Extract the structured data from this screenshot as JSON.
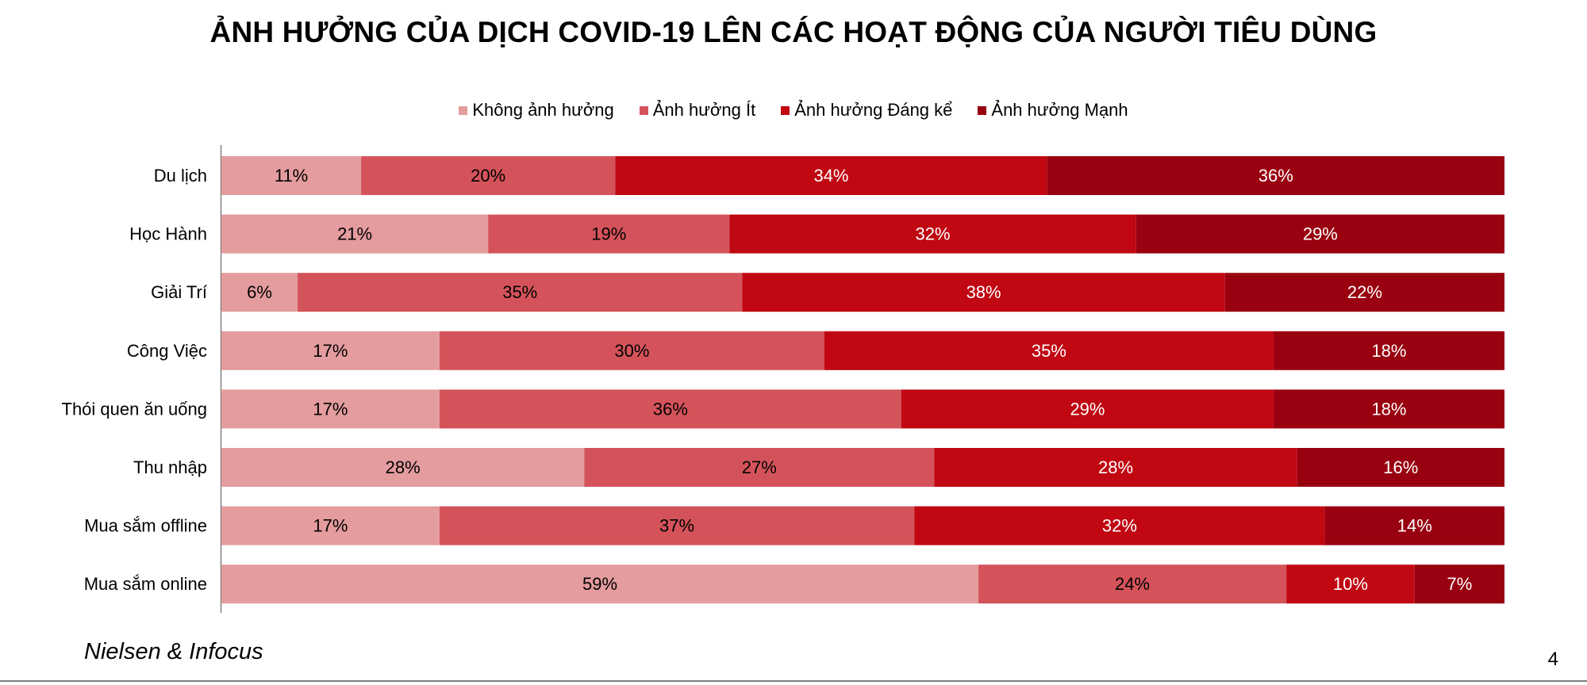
{
  "page": {
    "source": "Nielsen & Infocus",
    "page_number": "4"
  },
  "chart_data": {
    "type": "bar",
    "orientation": "horizontal",
    "stacked": true,
    "title": "ẢNH HƯỞNG CỦA DỊCH COVID-19 LÊN CÁC HOẠT ĐỘNG CỦA NGƯỜI TIÊU DÙNG",
    "legend_position": "top",
    "categories": [
      "Du lịch",
      "Học Hành",
      "Giải Trí",
      "Công Việc",
      "Thói quen ăn uống",
      "Thu nhập",
      "Mua sắm offline",
      "Mua sắm online"
    ],
    "series": [
      {
        "name": "Không ảnh hưởng",
        "color": "#e49c9e",
        "label_color": "#000000",
        "values": [
          11,
          21,
          6,
          17,
          17,
          28,
          17,
          59
        ]
      },
      {
        "name": "Ảnh hưởng Ít",
        "color": "#d4535a",
        "label_color": "#000000",
        "values": [
          20,
          19,
          35,
          30,
          36,
          27,
          37,
          24
        ]
      },
      {
        "name": "Ảnh hưởng Đáng kể",
        "color": "#c00712",
        "label_color": "#ffffff",
        "values": [
          34,
          32,
          38,
          35,
          29,
          28,
          32,
          10
        ]
      },
      {
        "name": "Ảnh hưởng Mạnh",
        "color": "#990010",
        "label_color": "#ffffff",
        "values": [
          36,
          29,
          22,
          18,
          18,
          16,
          14,
          7
        ]
      }
    ],
    "value_suffix": "%",
    "axis_color": "#808080"
  }
}
